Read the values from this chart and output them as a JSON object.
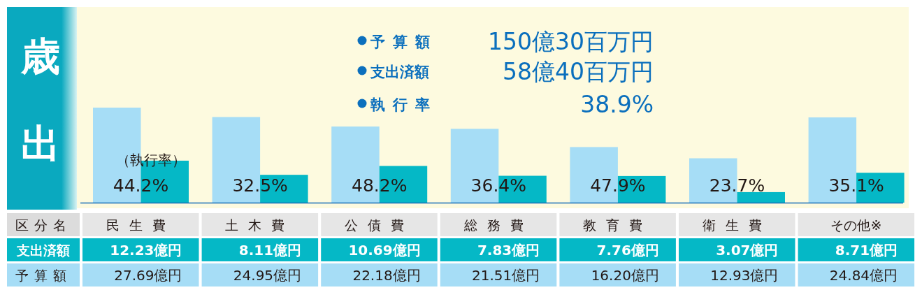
{
  "chart_data": {
    "type": "bar",
    "title": "歳出",
    "xlabel": "区分名",
    "categories": [
      "民生費",
      "土木費",
      "公債費",
      "総務費",
      "教育費",
      "衛生費",
      "その他※"
    ],
    "series": [
      {
        "name": "予算額",
        "color": "#a6ddf6",
        "values": [
          27.69,
          24.95,
          22.18,
          21.51,
          16.2,
          12.93,
          24.84
        ],
        "value_labels": [
          "27.69億円",
          "24.95億円",
          "22.18億円",
          "21.51億円",
          "16.20億円",
          "12.93億円",
          "24.84億円"
        ]
      },
      {
        "name": "支出済額",
        "color": "#05b8c6",
        "values": [
          12.23,
          8.11,
          10.69,
          7.83,
          7.76,
          3.07,
          8.71
        ],
        "value_labels": [
          "12.23億円",
          "8.11億円",
          "10.69億円",
          "7.83億円",
          "7.76億円",
          "3.07億円",
          "8.71億円"
        ]
      }
    ],
    "annotations": [
      "予算額",
      "150億30百万円",
      "支出済額",
      "58億40百万円",
      "執行率",
      "38.9%",
      "（執行率）",
      {
        "text": "44.2%",
        "x": "民生費"
      },
      {
        "text": "32.5%",
        "x": "土木費"
      },
      {
        "text": "48.2%",
        "x": "公債費"
      },
      {
        "text": "36.4%",
        "x": "総務費"
      },
      {
        "text": "47.9%",
        "x": "教育費"
      },
      {
        "text": "23.7%",
        "x": "衛生費"
      },
      {
        "text": "35.1%",
        "x": "その他※"
      }
    ]
  }
}
